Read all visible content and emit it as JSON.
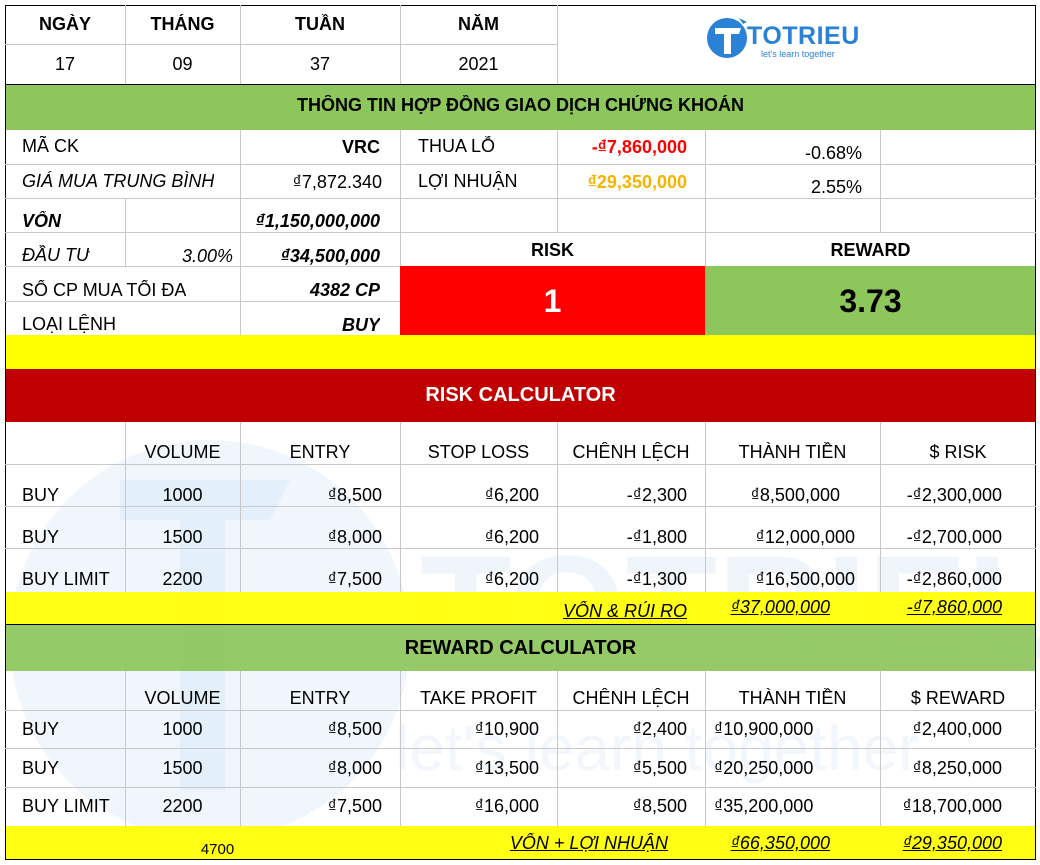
{
  "date_header": {
    "labels": [
      "NGÀY",
      "THÁNG",
      "TUẦN",
      "NĂM"
    ],
    "values": [
      "17",
      "09",
      "37",
      "2021"
    ]
  },
  "logo": {
    "name": "TOTRIEU",
    "tagline": "let's learn together"
  },
  "contract_title": "THÔNG TIN HỢP ĐỒNG GIAO DỊCH CHỨNG KHOÁN",
  "info": {
    "ma_ck_label": "MÃ CK",
    "ma_ck_value": "VRC",
    "gia_mua_label": "GIÁ MUA TRUNG BÌNH",
    "gia_mua_value": "₫7,872.340",
    "von_label": "VỐN",
    "von_value": "₫1,150,000,000",
    "dau_tu_label": "ĐẦU TƯ",
    "dau_tu_pct": "3.00%",
    "dau_tu_value": "₫34,500,000",
    "so_cp_label": "SỐ CP MUA TỐI ĐA",
    "so_cp_value": "4382 CP",
    "loai_lenh_label": "LOẠI LỆNH",
    "loai_lenh_value": "BUY",
    "thua_lo_label": "THUA LỖ",
    "thua_lo_value": "-₫7,860,000",
    "thua_lo_pct": "-0.68%",
    "loi_nhuan_label": "LỢI NHUẬN",
    "loi_nhuan_value": "₫29,350,000",
    "loi_nhuan_pct": "2.55%",
    "risk_label": "RISK",
    "risk_value": "1",
    "reward_label": "REWARD",
    "reward_value": "3.73"
  },
  "risk_calc": {
    "title": "RISK CALCULATOR",
    "headers": [
      "VOLUME",
      "ENTRY",
      "STOP LOSS",
      "CHÊNH LỆCH",
      "THÀNH TIỀN",
      "$ RISK"
    ],
    "rows": [
      [
        "BUY",
        "1000",
        "₫8,500",
        "₫6,200",
        "-₫2,300",
        "₫8,500,000",
        "-₫2,300,000"
      ],
      [
        "BUY",
        "1500",
        "₫8,000",
        "₫6,200",
        "-₫1,800",
        "₫12,000,000",
        "-₫2,700,000"
      ],
      [
        "BUY LIMIT",
        "2200",
        "₫7,500",
        "₫6,200",
        "-₫1,300",
        "₫16,500,000",
        "-₫2,860,000"
      ]
    ],
    "total_label": "VỐN & RỦI RO",
    "total_value": "₫37,000,000",
    "total_risk": "-₫7,860,000"
  },
  "reward_calc": {
    "title": "REWARD CALCULATOR",
    "headers": [
      "VOLUME",
      "ENTRY",
      "TAKE PROFIT",
      "CHÊNH LỆCH",
      "THÀNH TIỀN",
      "$ REWARD"
    ],
    "rows": [
      [
        "BUY",
        "1000",
        "₫8,500",
        "₫10,900",
        "₫2,400",
        "₫10,900,000",
        "₫2,400,000"
      ],
      [
        "BUY",
        "1500",
        "₫8,000",
        "₫13,500",
        "₫5,500",
        "₫20,250,000",
        "₫8,250,000"
      ],
      [
        "BUY LIMIT",
        "2200",
        "₫7,500",
        "₫16,000",
        "₫8,500",
        "₫35,200,000",
        "₫18,700,000"
      ]
    ],
    "total_volume": "4700",
    "total_label": "VỐN + LỢI NHUẬN",
    "total_value": "₫66,350,000",
    "total_reward": "₫29,350,000"
  },
  "colors": {
    "green": "#8dc65b",
    "red": "#ff0000",
    "darkred": "#c00000",
    "yellow": "#ffff00",
    "gold": "#f4b400",
    "blue": "#2a82d6"
  }
}
